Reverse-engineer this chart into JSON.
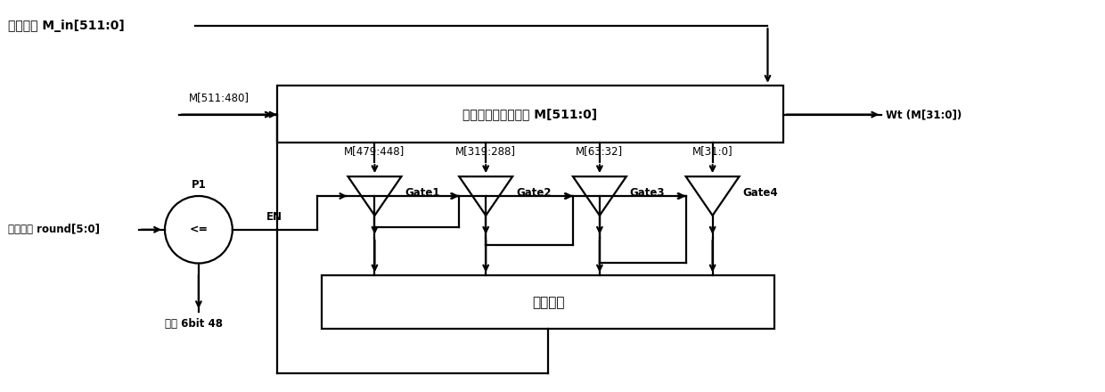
{
  "fig_width": 12.4,
  "fig_height": 4.4,
  "bg_color": "#ffffff",
  "line_color": "#000000",
  "top_label": "消息输入 M_in[511:0]",
  "shift_reg_label": "消息、移位寄存器组 M[511:0]",
  "logic_label": "运算逻辑",
  "wt_label": "Wt (M[31:0])",
  "p1_label": "P1",
  "compare_label": "<=",
  "en_label": "EN",
  "round_label": "运算论数 round[5:0]",
  "const_label": "常数 6bit 48",
  "m_in_label": "M[511:480]",
  "gate_labels": [
    "Gate1",
    "Gate2",
    "Gate3",
    "Gate4"
  ],
  "gate_bus_labels": [
    "M[479:448]",
    "M[319:288]",
    "M[63:32]",
    "M[31:0]"
  ],
  "font_size_main": 10,
  "font_size_small": 8.5,
  "font_size_label": 9,
  "lw": 1.6
}
